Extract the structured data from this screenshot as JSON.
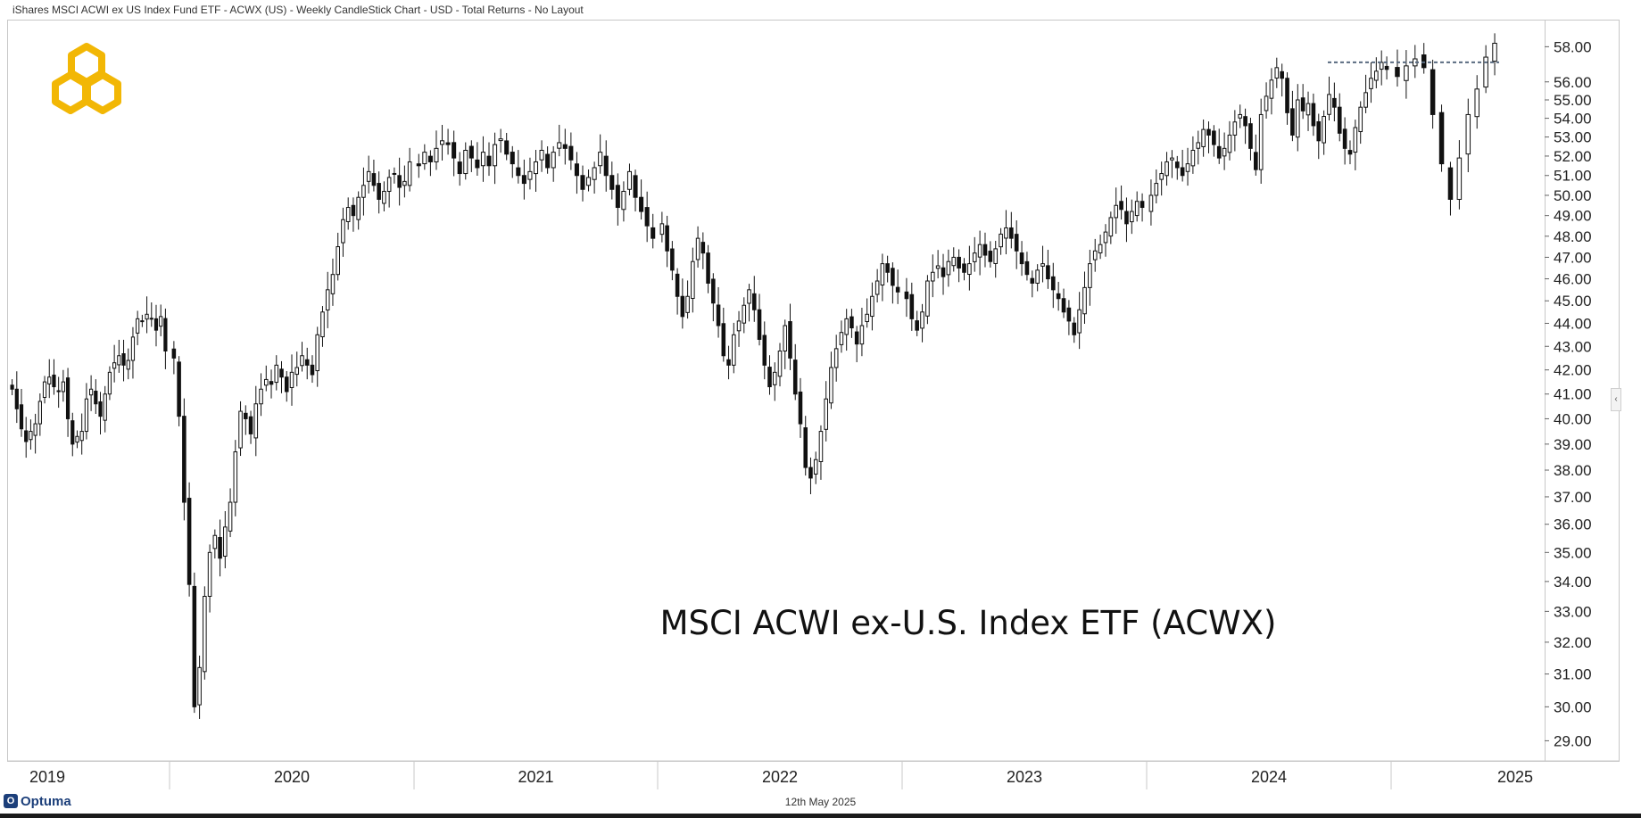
{
  "header": {
    "title": "iShares MSCI ACWI ex US Index Fund ETF - ACWX (US) - Weekly CandleStick Chart - USD - Total Returns - No Layout"
  },
  "footer": {
    "brand": "Optuma",
    "date": "12th May 2025"
  },
  "colors": {
    "up_fill": "#ffffff",
    "down_fill": "#111111",
    "candle_stroke": "#111111",
    "logo": "#f2b705",
    "resistance": "#5a6b80"
  },
  "icons": {
    "logo": "hexagon-logo-icon",
    "collapse": "chevron-left-icon"
  },
  "chart_data": {
    "type": "candlestick",
    "title": "",
    "annotation": "MSCI ACWI ex-U.S. Index ETF (ACWX)",
    "scale": "log",
    "ylim": [
      28.6,
      58.8
    ],
    "yticks": [
      "58.00",
      "56.00",
      "55.00",
      "54.00",
      "53.00",
      "52.00",
      "51.00",
      "50.00",
      "49.00",
      "48.00",
      "47.00",
      "46.00",
      "45.00",
      "44.00",
      "43.00",
      "42.00",
      "41.00",
      "40.00",
      "39.00",
      "38.00",
      "37.00",
      "36.00",
      "35.00",
      "34.00",
      "33.00",
      "32.00",
      "31.00",
      "30.00",
      "29.00"
    ],
    "x_axis_years": [
      "2019",
      "2020",
      "2021",
      "2022",
      "2023",
      "2024",
      "2025"
    ],
    "grid": false,
    "resistance_line": {
      "value": 57.1,
      "from": "2024-04",
      "to": "2025-05"
    },
    "weekly_closes": [
      [
        41.2,
        40.4,
        39.6,
        39.1,
        39.5,
        39.8,
        40.7,
        41.5,
        41.7,
        41.3,
        41.1,
        41.5,
        40.0,
        39.0,
        39.3,
        39.5,
        40.8,
        41.2,
        40.6,
        40.1,
        41.0,
        41.9,
        42.3,
        42.6,
        42.2,
        42.4,
        43.4,
        44.2,
        44.1,
        44.4,
        44.2,
        43.7,
        44.3,
        42.8
      ],
      [
        42.5,
        40.1,
        36.8,
        33.9,
        30.0,
        31.2,
        33.5,
        35.0,
        35.6,
        34.8,
        35.9,
        36.8,
        38.7,
        40.3,
        40.0,
        39.4,
        40.6,
        41.2,
        41.6,
        41.4,
        42.2,
        41.7,
        41.1,
        41.9,
        42.1,
        42.6,
        42.2,
        41.8,
        43.5,
        44.5,
        45.5,
        46.2,
        47.5,
        48.8,
        49.4,
        49.0,
        49.9,
        50.5,
        51.2,
        50.5,
        49.8,
        50.2,
        50.9,
        51.1,
        50.4,
        50.7,
        51.7
      ],
      [
        51.5,
        52.2,
        51.7,
        52.4,
        52.8,
        52.6,
        51.9,
        51.1,
        52.3,
        51.9,
        51.4,
        52.2,
        51.5,
        52.6,
        52.9,
        52.1,
        51.6,
        51.0,
        50.6,
        51.2,
        51.7,
        52.3,
        51.4,
        52.2,
        52.7,
        52.4,
        51.8,
        51.0,
        50.3,
        50.9,
        51.4,
        52.2,
        51.0,
        50.3,
        49.4,
        50.2,
        51.2,
        49.9,
        49.2,
        48.5,
        47.9
      ],
      [
        48.6,
        47.3,
        46.4,
        45.2,
        44.3,
        45.2,
        46.8,
        47.9,
        47.2,
        45.8,
        44.9,
        43.9,
        42.6,
        42.2,
        43.5,
        44.1,
        44.8,
        45.5,
        44.6,
        43.3,
        42.2,
        41.3,
        41.9,
        42.8,
        43.9,
        42.5,
        41.0,
        39.8,
        38.1,
        37.7,
        38.4,
        39.5,
        40.8,
        42.1,
        42.9,
        43.6,
        44.2,
        43.8,
        43.1,
        43.9,
        44.4,
        45.2,
        45.9,
        46.7,
        46.3,
        45.7,
        45.4
      ],
      [
        45.1,
        44.2,
        43.7,
        44.5,
        45.9,
        46.3,
        46.6,
        46.1,
        46.8,
        47.0,
        46.5,
        46.3,
        46.7,
        47.2,
        47.6,
        47.1,
        46.8,
        47.4,
        48.1,
        48.4,
        47.9,
        47.3,
        46.7,
        46.2,
        45.8,
        46.4,
        46.7,
        46.0,
        45.5,
        45.1,
        44.5,
        44.1,
        43.5,
        44.6,
        45.6,
        46.7,
        47.3,
        47.6,
        48.2,
        48.9,
        49.5,
        49.3,
        48.6,
        49.2,
        49.7,
        49.4
      ],
      [
        50.0,
        50.6,
        51.1,
        51.7,
        51.9,
        51.4,
        51.0,
        51.6,
        52.3,
        52.7,
        53.4,
        53.1,
        52.6,
        51.9,
        52.4,
        53.1,
        53.8,
        54.2,
        53.6,
        52.4,
        51.3,
        54.2,
        55.2,
        56.1,
        56.8,
        56.2,
        54.3,
        53.1,
        55.0,
        54.4,
        54.8,
        53.6,
        52.8,
        54.1,
        55.3,
        54.6,
        53.2,
        52.4,
        52.1,
        53.5,
        54.6,
        55.4,
        56.2,
        56.6,
        57.1,
        56.7
      ],
      [
        56.3,
        56.9,
        57.3,
        56.8,
        54.2,
        51.6,
        49.8,
        51.9,
        54.2,
        55.6,
        57.4,
        58.2
      ]
    ]
  }
}
